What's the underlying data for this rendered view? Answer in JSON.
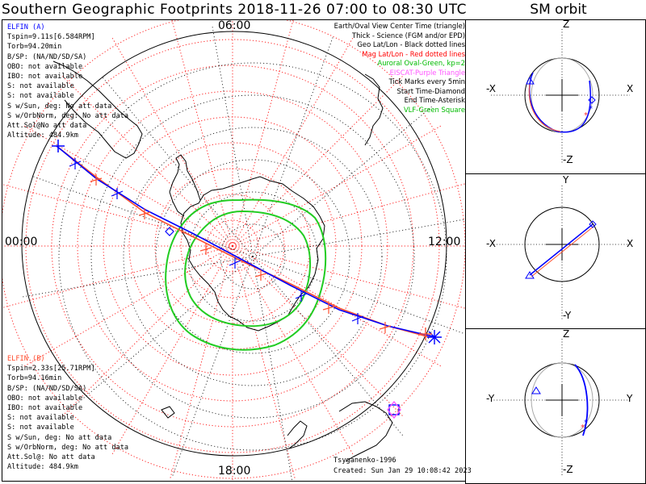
{
  "title": "Southern Geographic Footprints 2018-11-26 07:00 to 08:30 UTC",
  "sm_title": "SM orbit",
  "time_labels": {
    "top": "06:00",
    "left": "00:00",
    "right": "12:00",
    "bottom": "18:00"
  },
  "elfin_a": {
    "color": "#0000ff",
    "lines": [
      "ELFIN (A)",
      "Tspin=9.11s[6.584RPM]",
      "Torb=94.20min",
      "B/SP: (NA/ND/SD/SA)",
      "OBO: not available",
      "IBO: not available",
      "S: not available",
      "S: not available",
      "S w/Sun, deg: No att data",
      "S w/OrbNorm, deg: No att data",
      "Att.Sol@No att data",
      "Altitude: 484.9km"
    ]
  },
  "elfin_b": {
    "color": "#ff4a2a",
    "lines": [
      "ELFIN (B)",
      "Tspin=2.33s[25.71RPM]",
      "Torb=94.16min",
      "B/SP: (NA/ND/SD/SA)",
      "OBO: not available",
      "IBO: not available",
      "S: not available",
      "S: not available",
      "S w/Sun, deg: No att data",
      "S w/OrbNorm, deg: No att data",
      "Att.Sol@: No att data",
      "Altitude: 484.9km"
    ]
  },
  "legend": [
    {
      "text": "Earth/Oval View Center Time (triangle)",
      "color": "#000000"
    },
    {
      "text": "Thick - Science (FGM and/or EPD)",
      "color": "#000000"
    },
    {
      "text": "Geo Lat/Lon - Black dotted lines",
      "color": "#000000"
    },
    {
      "text": "Mag Lat/Lon - Red dotted lines",
      "color": "#ff0000"
    },
    {
      "text": "Auroral Oval-Green, kp=2",
      "color": "#00bb00"
    },
    {
      "text": "EISCAT-Purple Triangle",
      "color": "#ff55ff"
    },
    {
      "text": "Tick Marks every 5min",
      "color": "#000000"
    },
    {
      "text": "Start Time-Diamond",
      "color": "#000000"
    },
    {
      "text": "End Time-Asterisk",
      "color": "#000000"
    },
    {
      "text": "VLF-Green Square",
      "color": "#00bb00"
    }
  ],
  "credits": {
    "line1": "Tsyganenko-1996",
    "line2": "Created: Sun Jan 29 10:08:42 2023"
  },
  "sm_panels": [
    {
      "top": "Z",
      "bottom": "-Z",
      "left": "-X",
      "right": "X"
    },
    {
      "top": "Y",
      "bottom": "-Y",
      "left": "-X",
      "right": "X"
    },
    {
      "top": "Z",
      "bottom": "-Z",
      "left": "-Y",
      "right": "Y"
    }
  ],
  "chart_data": {
    "type": "line",
    "projection": "south polar stereographic",
    "series": [
      {
        "name": "ELFIN (A)",
        "color": "#0000ff"
      },
      {
        "name": "ELFIN (B)",
        "color": "#ff4a2a"
      }
    ],
    "colors": {
      "geo_grid": "#000000",
      "mag_grid": "#ff0000",
      "oval": "#00cc00",
      "eiscat": "#ff55ff"
    }
  }
}
